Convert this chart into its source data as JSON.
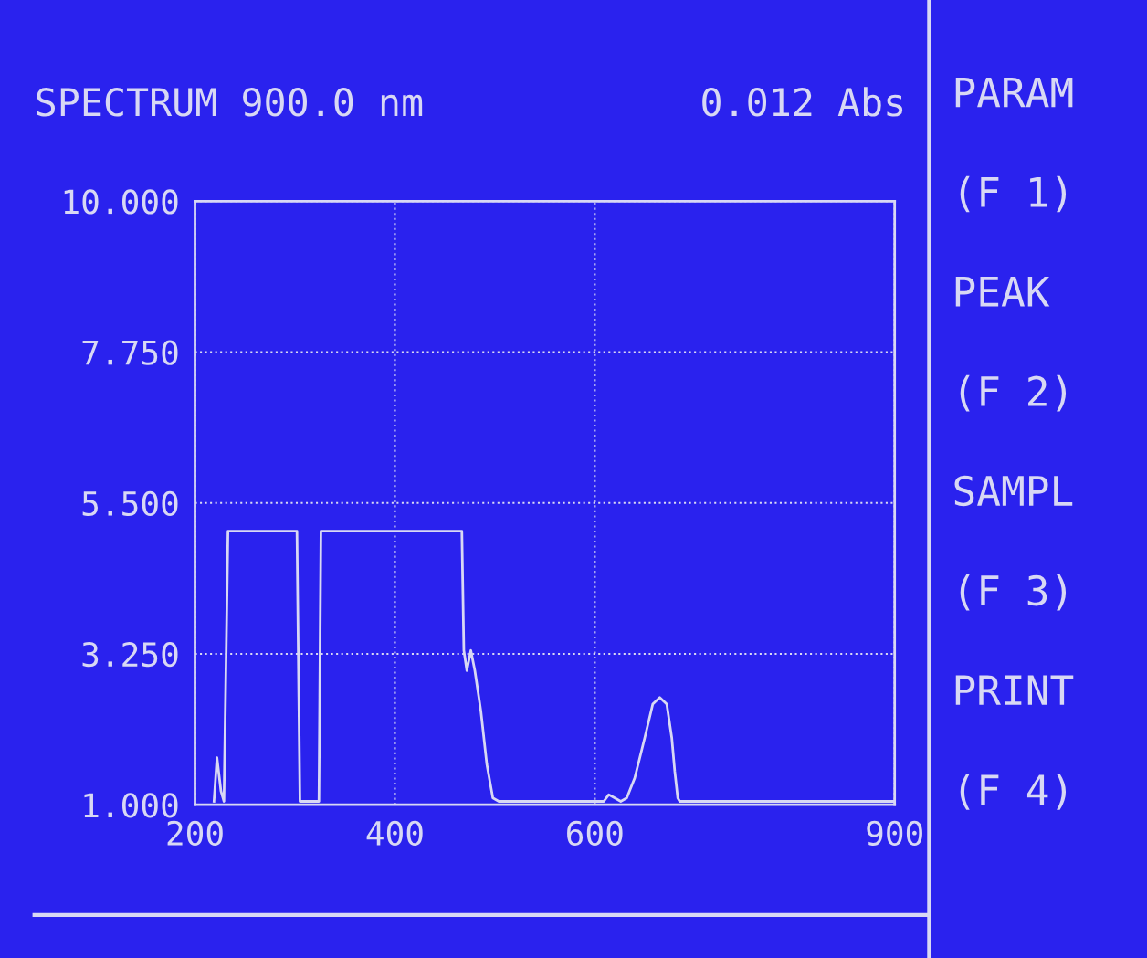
{
  "chart_data": {
    "type": "line",
    "title": "SPECTRUM 900.0 nm",
    "subtitle": "0.012 Abs",
    "annotations": [
      "PARAM",
      "(F 1)",
      "PEAK",
      "(F 2)",
      "SAMPL",
      "(F 3)",
      "PRINT",
      "(F 4)"
    ],
    "series": [
      {
        "color": "#d8d8f4",
        "x": [
          219,
          222,
          226,
          229,
          233,
          302,
          305,
          310,
          324,
          326,
          329,
          467,
          469,
          472,
          476,
          480,
          486,
          492,
          498,
          504,
          609,
          614,
          620,
          626,
          632,
          640,
          650,
          658,
          665,
          672,
          677,
          680,
          683,
          685,
          900
        ],
        "values": [
          1.05,
          1.7,
          1.2,
          1.05,
          5.08,
          5.08,
          1.05,
          1.05,
          1.05,
          5.08,
          5.08,
          5.08,
          3.3,
          3.0,
          3.3,
          3.0,
          2.4,
          1.6,
          1.1,
          1.05,
          1.05,
          1.15,
          1.1,
          1.05,
          1.1,
          1.4,
          2.0,
          2.5,
          2.6,
          2.5,
          2.0,
          1.5,
          1.1,
          1.05,
          1.05
        ]
      }
    ],
    "xlim": [
      200,
      900
    ],
    "ylim": [
      1,
      10
    ],
    "xticks": [
      200,
      400,
      600,
      900
    ],
    "yticks": [
      {
        "value": 1,
        "label": "1.000"
      },
      {
        "value": 3.25,
        "label": "3.250"
      },
      {
        "value": 5.5,
        "label": "5.500"
      },
      {
        "value": 7.75,
        "label": "7.750"
      },
      {
        "value": 10,
        "label": "10.000"
      }
    ],
    "grid": true,
    "line_style": "solid",
    "marker": "none",
    "legend": false
  }
}
